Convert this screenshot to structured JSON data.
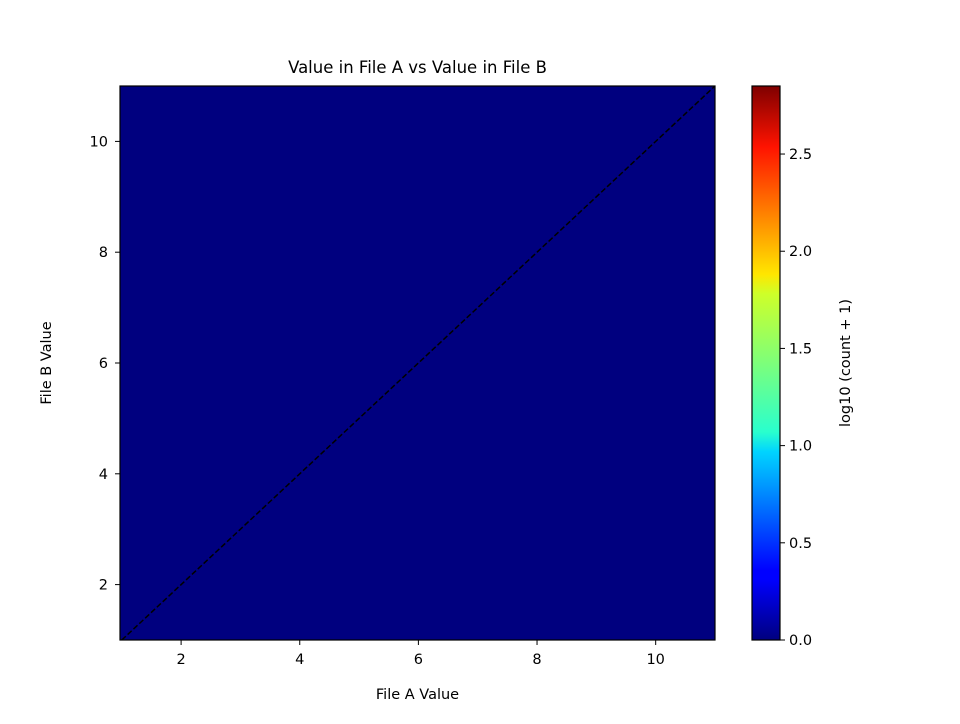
{
  "chart_data": {
    "type": "heatmap",
    "title": "Value in File A vs Value in File B",
    "xlabel": "File A Value",
    "ylabel": "File B Value",
    "xlim": [
      0.97,
      11.0
    ],
    "ylim": [
      1.0,
      11.0
    ],
    "xticks": [
      "2",
      "4",
      "6",
      "8",
      "10"
    ],
    "yticks": [
      "2",
      "4",
      "6",
      "8",
      "10"
    ],
    "cell_value_everywhere": 0.0,
    "reference_line": {
      "style": "dashed",
      "color": "#000000",
      "x": [
        1,
        11
      ],
      "y": [
        1,
        11
      ]
    },
    "colorbar": {
      "label": "log10 (count + 1)",
      "colormap": "jet",
      "range": [
        0.0,
        2.85
      ],
      "ticks": [
        "0.0",
        "0.5",
        "1.0",
        "1.5",
        "2.0",
        "2.5"
      ]
    },
    "grid": false
  }
}
